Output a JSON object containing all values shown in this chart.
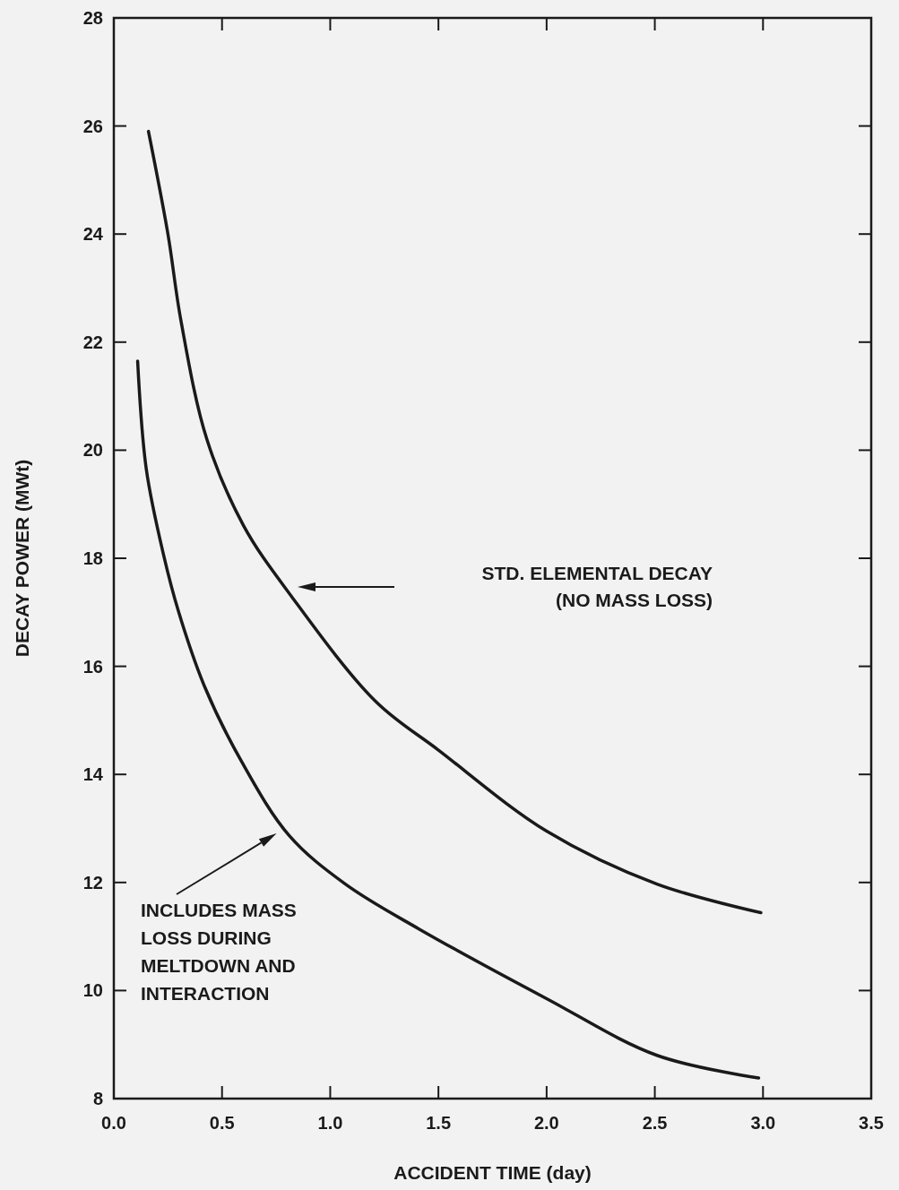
{
  "chart_data": {
    "type": "line",
    "xlabel": "ACCIDENT TIME (day)",
    "ylabel": "DECAY POWER (MWt)",
    "xlim": [
      0,
      3.5
    ],
    "xticks": [
      {
        "value": 0,
        "label": "0.0"
      },
      0.5,
      {
        "value": 1,
        "label": "1.0"
      },
      1.5,
      {
        "value": 2,
        "label": "2.0"
      },
      2.5,
      {
        "value": 3,
        "label": "3.0"
      },
      3.5
    ],
    "ylim": [
      8,
      28
    ],
    "yticks": [
      8,
      10,
      12,
      14,
      16,
      18,
      20,
      22,
      24,
      26,
      28
    ],
    "series": [
      {
        "color": "#1a1a1a",
        "x": [
          0.16,
          0.25,
          0.31,
          0.43,
          0.6,
          0.82,
          1.21,
          1.5,
          2.0,
          2.51,
          2.99
        ],
        "values": [
          25.9,
          24.0,
          22.4,
          20.2,
          18.6,
          17.3,
          15.35,
          14.45,
          12.95,
          11.97,
          11.44
        ]
      },
      {
        "color": "#1a1a1a",
        "x": [
          0.11,
          0.15,
          0.23,
          0.3,
          0.42,
          0.59,
          0.81,
          1.07,
          1.41,
          2.0,
          2.51,
          2.98
        ],
        "values": [
          21.65,
          19.65,
          18.06,
          17.0,
          15.62,
          14.24,
          12.87,
          11.97,
          11.14,
          9.85,
          8.8,
          8.38
        ]
      }
    ],
    "annotations": [
      "STD. ELEMENTAL DECAY\n(NO MASS LOSS)",
      "INCLUDES MASS\nLOSS DURING\nMELTDOWN AND\nINTERACTION"
    ]
  }
}
